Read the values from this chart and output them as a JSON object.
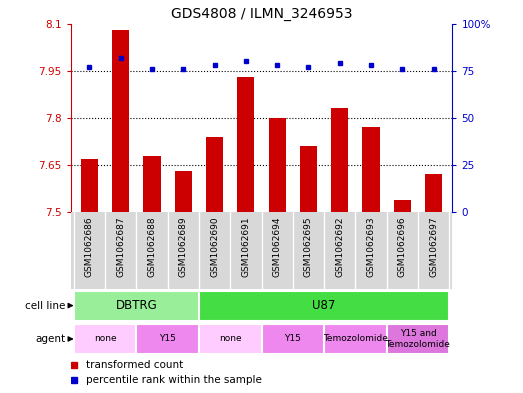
{
  "title": "GDS4808 / ILMN_3246953",
  "samples": [
    "GSM1062686",
    "GSM1062687",
    "GSM1062688",
    "GSM1062689",
    "GSM1062690",
    "GSM1062691",
    "GSM1062694",
    "GSM1062695",
    "GSM1062692",
    "GSM1062693",
    "GSM1062696",
    "GSM1062697"
  ],
  "bar_values": [
    7.67,
    8.08,
    7.68,
    7.63,
    7.74,
    7.93,
    7.8,
    7.71,
    7.83,
    7.77,
    7.54,
    7.62
  ],
  "dot_values": [
    77,
    82,
    76,
    76,
    78,
    80,
    78,
    77,
    79,
    78,
    76,
    76
  ],
  "ylim_left": [
    7.5,
    8.1
  ],
  "ylim_right": [
    0,
    100
  ],
  "yticks_left": [
    7.5,
    7.65,
    7.8,
    7.95,
    8.1
  ],
  "yticks_right": [
    0,
    25,
    50,
    75,
    100
  ],
  "ytick_labels_left": [
    "7.5",
    "7.65",
    "7.8",
    "7.95",
    "8.1"
  ],
  "ytick_labels_right": [
    "0",
    "25",
    "50",
    "75",
    "100%"
  ],
  "bar_color": "#cc0000",
  "dot_color": "#0000cc",
  "bar_bottom": 7.5,
  "cell_line_data": [
    {
      "label": "DBTRG",
      "start": 0,
      "end": 4,
      "color": "#99ee99"
    },
    {
      "label": "U87",
      "start": 4,
      "end": 12,
      "color": "#44dd44"
    }
  ],
  "agent_data": [
    {
      "label": "none",
      "start": 0,
      "end": 2,
      "color": "#ffccff"
    },
    {
      "label": "Y15",
      "start": 2,
      "end": 4,
      "color": "#ee88ee"
    },
    {
      "label": "none",
      "start": 4,
      "end": 6,
      "color": "#ffccff"
    },
    {
      "label": "Y15",
      "start": 6,
      "end": 8,
      "color": "#ee88ee"
    },
    {
      "label": "Temozolomide",
      "start": 8,
      "end": 10,
      "color": "#ee88ee"
    },
    {
      "label": "Y15 and\nTemozolomide",
      "start": 10,
      "end": 12,
      "color": "#dd77dd"
    }
  ],
  "left_axis_color": "#cc0000",
  "right_axis_color": "#0000cc",
  "cell_line_label": "cell line",
  "agent_label": "agent",
  "sample_bg_color": "#d8d8d8",
  "legend_items": [
    {
      "label": "transformed count",
      "color": "#cc0000"
    },
    {
      "label": "percentile rank within the sample",
      "color": "#0000cc"
    }
  ]
}
